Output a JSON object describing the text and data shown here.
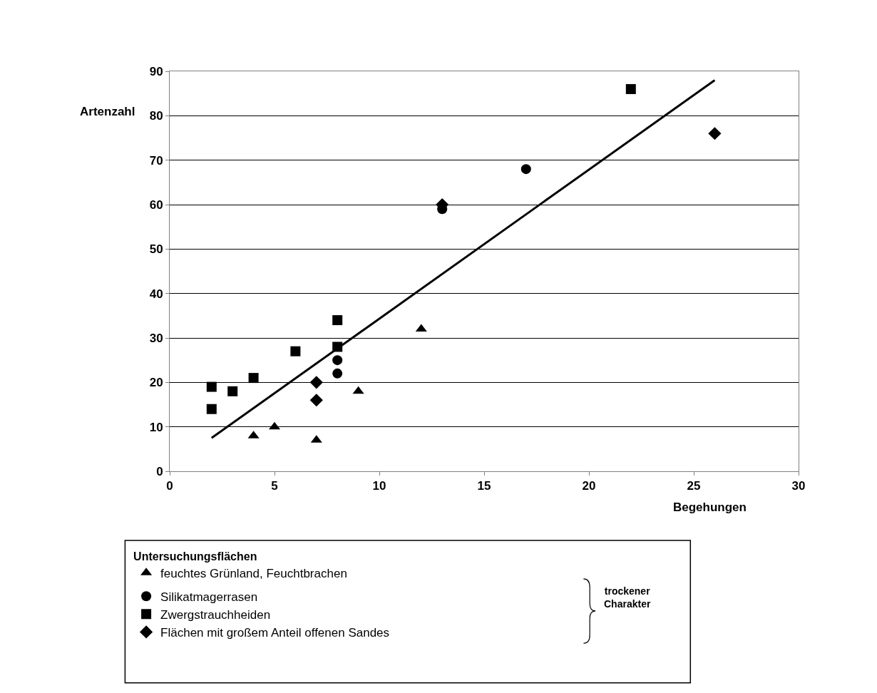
{
  "chart_data": {
    "type": "scatter",
    "xlabel": "Begehungen",
    "ylabel": "Artenzahl",
    "legend_title": "Untersuchungsflächen",
    "xlim": [
      0,
      30
    ],
    "xticks": [
      0,
      5,
      10,
      15,
      20,
      25,
      30
    ],
    "ylim": [
      0,
      90
    ],
    "yticks": [
      0,
      10,
      20,
      30,
      40,
      50,
      60,
      70,
      80,
      90
    ],
    "grid": "y",
    "legend": "bottom",
    "series": [
      {
        "name": "feuchtes Grünland, Feuchtbrachen",
        "color": "#000000",
        "marker": "triangle",
        "x": [
          4,
          5,
          7,
          9,
          12
        ],
        "values": [
          8,
          10,
          7,
          18,
          32
        ]
      },
      {
        "name": "Silikatmagerrasen",
        "color": "#000000",
        "marker": "circle",
        "x": [
          8,
          8,
          13,
          17
        ],
        "values": [
          25,
          22,
          59,
          68
        ]
      },
      {
        "name": "Zwergstrauchheiden",
        "color": "#000000",
        "marker": "square",
        "x": [
          2,
          2,
          3,
          4,
          6,
          8,
          8,
          22
        ],
        "values": [
          19,
          14,
          18,
          21,
          27,
          34,
          28,
          86
        ]
      },
      {
        "name": "Flächen mit großem Anteil offenen Sandes",
        "color": "#000000",
        "marker": "diamond",
        "x": [
          7,
          7,
          13,
          26
        ],
        "values": [
          20,
          16,
          60,
          76
        ]
      },
      {
        "type": "line",
        "color": "#000000",
        "marker": "none",
        "x": [
          2,
          26
        ],
        "values": [
          7.5,
          88
        ]
      }
    ],
    "annotations": [
      "trockener Charakter"
    ]
  }
}
